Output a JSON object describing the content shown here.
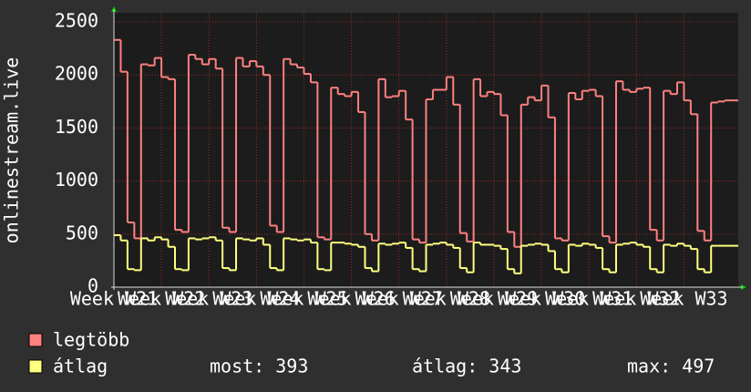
{
  "chart_data": {
    "type": "line",
    "step": true,
    "y_label": "onlinestream.live",
    "x": [
      0,
      1,
      2,
      3,
      4,
      5,
      6,
      7,
      8,
      9,
      10,
      11,
      12,
      13,
      14,
      15,
      16,
      17,
      18,
      19,
      20,
      21,
      22,
      23,
      24,
      25,
      26,
      27,
      28,
      29,
      30,
      31,
      32,
      33,
      34,
      35,
      36,
      37,
      38,
      39,
      40,
      41,
      42,
      43,
      44,
      45,
      46,
      47,
      48,
      49,
      50,
      51,
      52,
      53,
      54,
      55,
      56,
      57,
      58,
      59,
      60,
      61,
      62,
      63,
      64,
      65,
      66,
      67,
      68,
      69,
      70,
      71,
      72,
      73,
      74,
      75,
      76,
      77,
      78,
      79,
      80,
      81,
      82,
      83,
      84,
      85,
      86,
      87,
      88,
      89,
      90,
      91
    ],
    "xlim": [
      0,
      92
    ],
    "xticks": [
      {
        "value": 0,
        "label": "Week W21"
      },
      {
        "value": 7,
        "label": "Week W22"
      },
      {
        "value": 14,
        "label": "Week W23"
      },
      {
        "value": 21,
        "label": "Week W24"
      },
      {
        "value": 28,
        "label": "Week W25"
      },
      {
        "value": 35,
        "label": "Week W26"
      },
      {
        "value": 42,
        "label": "Week W27"
      },
      {
        "value": 49,
        "label": "Week W28"
      },
      {
        "value": 56,
        "label": "Week W29"
      },
      {
        "value": 63,
        "label": "Week W30"
      },
      {
        "value": 70,
        "label": "Week W31"
      },
      {
        "value": 77,
        "label": "Week W32"
      },
      {
        "value": 84,
        "label": "Week W33"
      }
    ],
    "ylim": [
      0,
      2500
    ],
    "yticks": [
      0,
      500,
      1000,
      1500,
      2000,
      2500
    ],
    "grid": true,
    "series": [
      {
        "name": "legtöbb",
        "color": "#ff8080",
        "values": [
          2330,
          2030,
          610,
          460,
          2100,
          2090,
          2160,
          1980,
          1960,
          540,
          520,
          2190,
          2150,
          2100,
          2150,
          2060,
          560,
          520,
          2160,
          2080,
          2130,
          2080,
          2000,
          580,
          520,
          2150,
          2100,
          2070,
          2010,
          1930,
          470,
          450,
          1880,
          1820,
          1800,
          1840,
          1650,
          500,
          440,
          1960,
          1790,
          1800,
          1850,
          1580,
          450,
          420,
          1770,
          1860,
          1860,
          1980,
          1720,
          510,
          430,
          1960,
          1800,
          1840,
          1820,
          1620,
          520,
          380,
          1720,
          1790,
          1760,
          1900,
          1600,
          460,
          440,
          1830,
          1770,
          1850,
          1860,
          1800,
          480,
          420,
          1940,
          1860,
          1840,
          1870,
          1880,
          540,
          440,
          1850,
          1820,
          1930,
          1760,
          1630,
          530,
          440,
          1740,
          1750,
          1760,
          1760
        ]
      },
      {
        "name": "átlag",
        "color": "#ffff80",
        "values": [
          490,
          440,
          170,
          160,
          460,
          440,
          470,
          450,
          380,
          170,
          160,
          460,
          450,
          460,
          470,
          440,
          180,
          160,
          460,
          450,
          440,
          460,
          400,
          180,
          160,
          460,
          450,
          440,
          450,
          420,
          170,
          160,
          420,
          420,
          410,
          400,
          380,
          180,
          150,
          410,
          400,
          410,
          420,
          370,
          170,
          150,
          400,
          410,
          420,
          400,
          370,
          180,
          140,
          420,
          400,
          400,
          390,
          360,
          170,
          130,
          390,
          400,
          410,
          400,
          340,
          170,
          140,
          400,
          390,
          410,
          400,
          370,
          170,
          140,
          400,
          410,
          420,
          400,
          380,
          170,
          140,
          400,
          390,
          410,
          390,
          360,
          170,
          140,
          390,
          390,
          390,
          390
        ]
      }
    ],
    "stats": [
      "most: 393",
      "átlag: 343",
      "max: 497"
    ]
  }
}
